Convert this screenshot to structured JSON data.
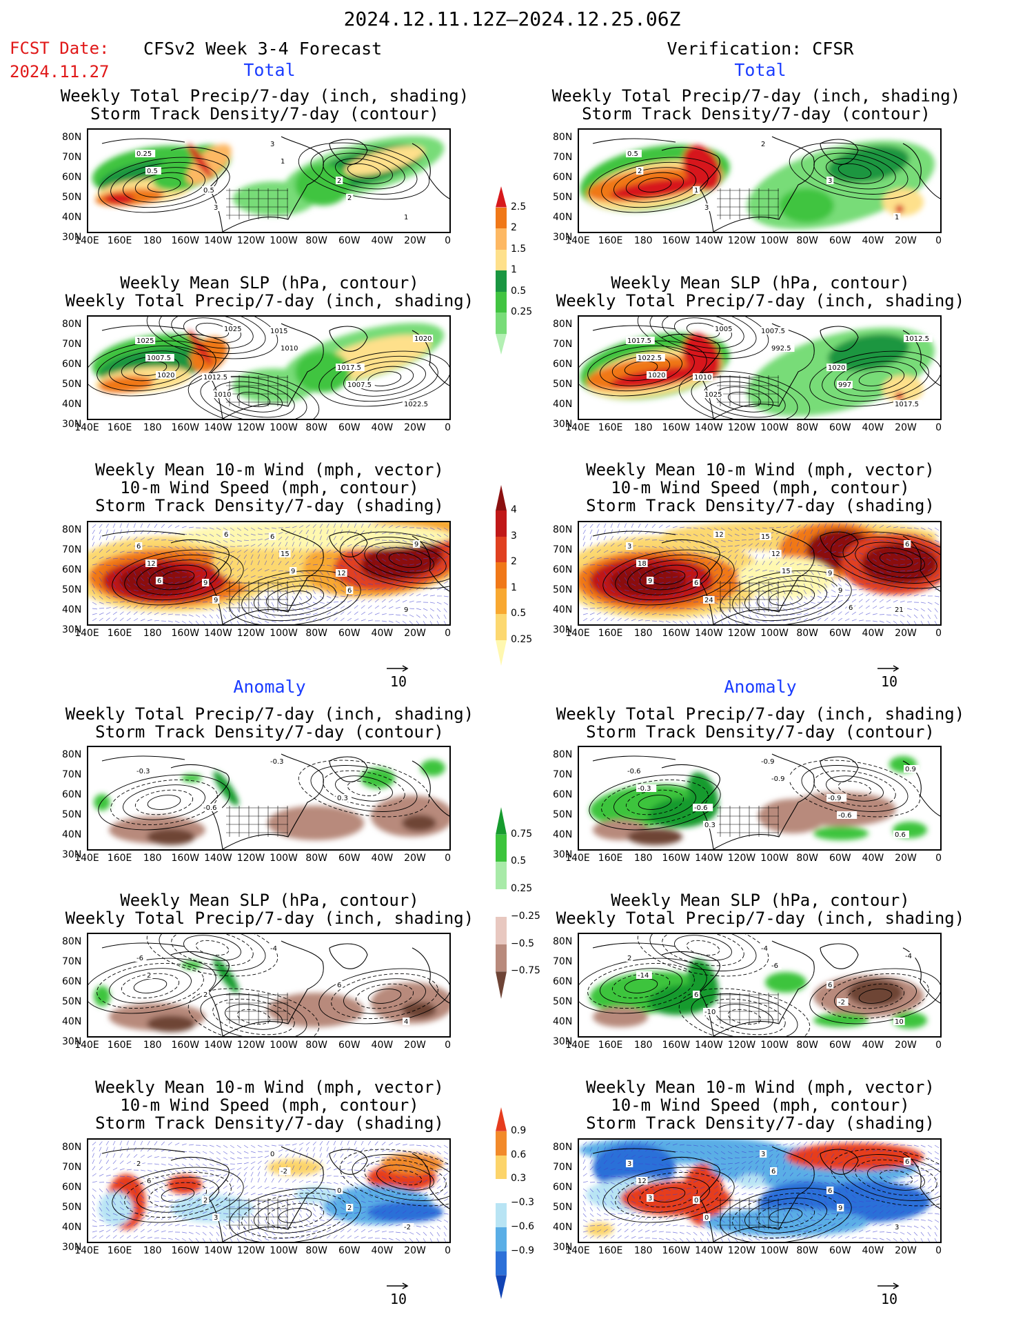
{
  "header": {
    "date_range": "2024.12.11.12Z–2024.12.25.06Z",
    "fcst_label": "FCST Date:",
    "fcst_date": "2024.11.27",
    "left_title": "CFSv2 Week 3-4 Forecast",
    "right_title": "Verification: CFSR"
  },
  "sections": {
    "total": "Total",
    "anomaly": "Anomaly"
  },
  "panel_titles": {
    "precip_storm": [
      "Weekly Total Precip/7-day (inch, shading)",
      "Storm Track Density/7-day (contour)"
    ],
    "slp_precip": [
      "Weekly Mean SLP (hPa, contour)",
      "Weekly Total Precip/7-day (inch, shading)"
    ],
    "wind_storm": [
      "Weekly Mean 10-m Wind (mph, vector)",
      "10-m Wind Speed (mph, contour)",
      "Storm Track Density/7-day (shading)"
    ]
  },
  "axes": {
    "lat_labels": [
      "80N",
      "70N",
      "60N",
      "50N",
      "40N",
      "30N"
    ],
    "lon_labels": [
      "140E",
      "160E",
      "180",
      "160W",
      "140W",
      "120W",
      "100W",
      "80W",
      "60W",
      "40W",
      "20W",
      "0"
    ]
  },
  "wind_reference": "10",
  "colorbars": {
    "precip_total": {
      "labels": [
        "2.5",
        "2",
        "1.5",
        "1",
        "0.5",
        "0.25"
      ],
      "colors": [
        "#d7191c",
        "#f07818",
        "#fdb863",
        "#fee08b",
        "#1a9641",
        "#41c441",
        "#78dc78",
        "#b4f0b4"
      ]
    },
    "storm_total": {
      "labels": [
        "4",
        "3",
        "2",
        "1",
        "0.5",
        "0.25"
      ],
      "colors": [
        "#8b1010",
        "#c01818",
        "#e04020",
        "#f07818",
        "#f8a830",
        "#fcd870",
        "#fff8b0"
      ]
    },
    "precip_anom": {
      "labels": [
        "0.75",
        "0.5",
        "0.25",
        "−0.25",
        "−0.5",
        "−0.75"
      ],
      "colors": [
        "#169b2e",
        "#3cc43c",
        "#a8eaa8",
        "#ffffff",
        "#e8c8c0",
        "#b88a7c",
        "#6e4436"
      ]
    },
    "storm_anom": {
      "labels": [
        "0.9",
        "0.6",
        "0.3",
        "−0.3",
        "−0.6",
        "−0.9"
      ],
      "colors": [
        "#e63c1e",
        "#f28a2a",
        "#fcd46a",
        "#ffffff",
        "#b8e4f4",
        "#5aaee6",
        "#2c70d8",
        "#1244b4"
      ]
    },
    "shading_hex_note": ""
  },
  "contour_labels": {
    "p1L": [
      "0.25",
      "0.5",
      "3",
      "2",
      "1",
      "0.5",
      "3",
      "1",
      "2"
    ],
    "p1R": [
      "0.5",
      "1",
      "2",
      "3",
      "1",
      "2",
      "3"
    ],
    "p2L": [
      "1025",
      "1012.5",
      "1015",
      "1017.5",
      "1022.5",
      "1007.5",
      "1010",
      "1010",
      "1007.5",
      "1020",
      "1020",
      "1025"
    ],
    "p2R": [
      "1017.5",
      "1010",
      "1007.5",
      "1020",
      "1017.5",
      "1022.5",
      "1025",
      "992.5",
      "997",
      "1012.5",
      "1020",
      "1005"
    ],
    "p3L": [
      "6",
      "9",
      "6",
      "12",
      "9",
      "12",
      "9",
      "15",
      "6",
      "9",
      "6",
      "6",
      "9"
    ],
    "p3R": [
      "3",
      "6",
      "15",
      "9",
      "21",
      "18",
      "24",
      "12",
      "9",
      "6",
      "9",
      "12",
      "15",
      "6"
    ],
    "p4L": [
      "-0.3",
      "-0.6",
      "-0.3",
      "0.3"
    ],
    "p4R": [
      "-0.6",
      "-0.6",
      "-0.9",
      "-0.9",
      "0.6",
      "-0.3",
      "0.3",
      "-0.9",
      "-0.6",
      "0.9"
    ],
    "p5L": [
      "-6",
      "2",
      "-4",
      "6",
      "4",
      "2"
    ],
    "p5R": [
      "2",
      "6",
      "-4",
      "6",
      "10",
      "-14",
      "-10",
      "-6",
      "-2",
      "-4"
    ],
    "p6L": [
      "2",
      "2",
      "0",
      "0",
      "-2",
      "6",
      "3",
      "-2",
      "2"
    ],
    "p6R": [
      "3",
      "0",
      "3",
      "6",
      "3",
      "12",
      "0",
      "6",
      "9",
      "6",
      "3"
    ]
  }
}
